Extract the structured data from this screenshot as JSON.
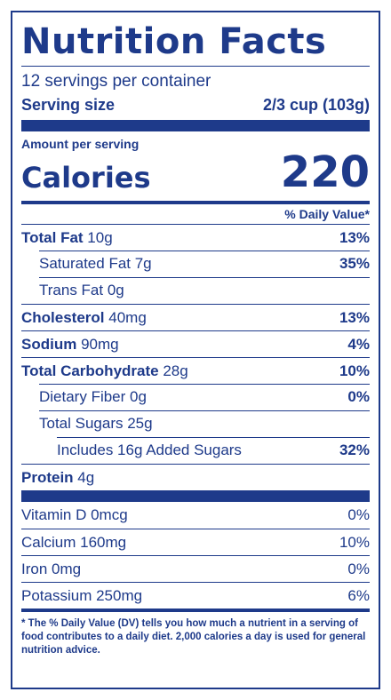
{
  "title": "Nutrition Facts",
  "servings_per_container": "12 servings per container",
  "serving_size": {
    "label": "Serving size",
    "value": "2/3 cup (103g)"
  },
  "amount_per_serving": "Amount per serving",
  "calories": {
    "label": "Calories",
    "value": "220"
  },
  "daily_value_header": "% Daily Value*",
  "nutrients": [
    {
      "name": "Total Fat",
      "amount": " 10g",
      "dv": "13%"
    },
    {
      "name": "Saturated Fat 7g",
      "amount": "",
      "dv": "35%"
    },
    {
      "name": "Trans Fat 0g",
      "amount": "",
      "dv": ""
    },
    {
      "name": "Cholesterol",
      "amount": " 40mg",
      "dv": "13%"
    },
    {
      "name": "Sodium",
      "amount": " 90mg",
      "dv": "4%"
    },
    {
      "name": "Total Carbohydrate",
      "amount": " 28g",
      "dv": "10%"
    },
    {
      "name": "Dietary Fiber 0g",
      "amount": "",
      "dv": "0%"
    },
    {
      "name": "Total Sugars 25g",
      "amount": "",
      "dv": ""
    },
    {
      "name": "Includes 16g Added Sugars",
      "amount": "",
      "dv": "32%"
    },
    {
      "name": "Protein",
      "amount": " 4g",
      "dv": ""
    }
  ],
  "vitamins": [
    {
      "name": "Vitamin D 0mcg",
      "dv": "0%"
    },
    {
      "name": "Calcium 160mg",
      "dv": "10%"
    },
    {
      "name": "Iron 0mg",
      "dv": "0%"
    },
    {
      "name": "Potassium 250mg",
      "dv": "6%"
    }
  ],
  "footnote": "* The % Daily Value (DV) tells you how much a nutrient in a serving of food contributes to a daily diet. 2,000 calories a day is used for general nutrition advice.",
  "colors": {
    "ink": "#1e3a8a",
    "background": "#ffffff"
  }
}
